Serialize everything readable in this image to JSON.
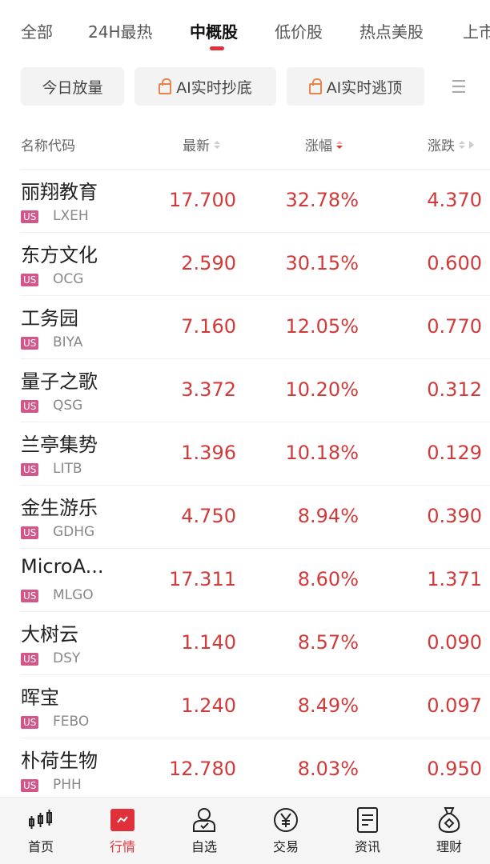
{
  "tabs": [
    {
      "label": "全部"
    },
    {
      "label": "24H最热"
    },
    {
      "label": "中概股",
      "active": true
    },
    {
      "label": "低价股"
    },
    {
      "label": "热点美股"
    },
    {
      "label": "上市"
    }
  ],
  "chips": [
    {
      "label": "今日放量",
      "locked": false
    },
    {
      "label": "AI实时抄底",
      "locked": true
    },
    {
      "label": "AI实时逃顶",
      "locked": true
    }
  ],
  "header": {
    "name": "名称代码",
    "latest": "最新",
    "pct": "涨幅",
    "change": "涨跌",
    "active_sort": "涨幅 descending"
  },
  "rows": [
    {
      "name": "丽翔教育",
      "market": "US",
      "code": "LXEH",
      "latest": "17.700",
      "pct": "32.78%",
      "change": "4.370"
    },
    {
      "name": "东方文化",
      "market": "US",
      "code": "OCG",
      "latest": "2.590",
      "pct": "30.15%",
      "change": "0.600"
    },
    {
      "name": "工务园",
      "market": "US",
      "code": "BIYA",
      "latest": "7.160",
      "pct": "12.05%",
      "change": "0.770"
    },
    {
      "name": "量子之歌",
      "market": "US",
      "code": "QSG",
      "latest": "3.372",
      "pct": "10.20%",
      "change": "0.312"
    },
    {
      "name": "兰亭集势",
      "market": "US",
      "code": "LITB",
      "latest": "1.396",
      "pct": "10.18%",
      "change": "0.129"
    },
    {
      "name": "金生游乐",
      "market": "US",
      "code": "GDHG",
      "latest": "4.750",
      "pct": "8.94%",
      "change": "0.390"
    },
    {
      "name": "MicroA...",
      "market": "US",
      "code": "MLGO",
      "latest": "17.311",
      "pct": "8.60%",
      "change": "1.371"
    },
    {
      "name": "大树云",
      "market": "US",
      "code": "DSY",
      "latest": "1.140",
      "pct": "8.57%",
      "change": "0.090"
    },
    {
      "name": "晖宝",
      "market": "US",
      "code": "FEBO",
      "latest": "1.240",
      "pct": "8.49%",
      "change": "0.097"
    },
    {
      "name": "朴荷生物",
      "market": "US",
      "code": "PHH",
      "latest": "12.780",
      "pct": "8.03%",
      "change": "0.950"
    }
  ],
  "nav": [
    {
      "label": "首页",
      "icon": "candlestick-icon"
    },
    {
      "label": "行情",
      "icon": "market-chart-icon",
      "active": true
    },
    {
      "label": "自选",
      "icon": "user-check-icon"
    },
    {
      "label": "交易",
      "icon": "yen-circle-icon"
    },
    {
      "label": "资讯",
      "icon": "document-icon"
    },
    {
      "label": "理财",
      "icon": "money-bag-icon"
    }
  ],
  "colors": {
    "up": "#d23a3a",
    "accent": "#e0303a",
    "market_badge": "#d2568a",
    "lock": "#e8844a"
  }
}
